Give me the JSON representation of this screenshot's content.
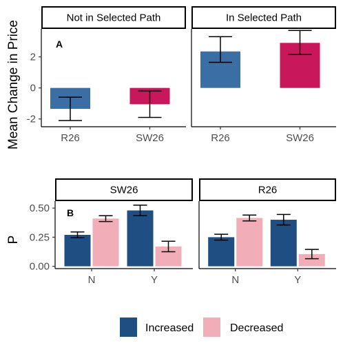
{
  "chart_data": [
    {
      "type": "bar",
      "tag": "A",
      "ylabel": "Mean Change in Price",
      "ylim": [
        -2.5,
        3.8
      ],
      "yticks": [
        -2,
        0,
        2
      ],
      "ytick_labels": [
        "-2",
        "0",
        "2"
      ],
      "categories": [
        "R26",
        "SW26"
      ],
      "facets": [
        {
          "label": "Not in Selected Path",
          "bars": [
            {
              "category": "R26",
              "value": -1.35,
              "err_low": -2.1,
              "err_high": -0.6,
              "color": "#3a6ea5"
            },
            {
              "category": "SW26",
              "value": -1.05,
              "err_low": -1.9,
              "err_high": -0.2,
              "color": "#c8175a"
            }
          ]
        },
        {
          "label": "In Selected Path",
          "bars": [
            {
              "category": "R26",
              "value": 2.35,
              "err_low": 1.65,
              "err_high": 3.3,
              "color": "#3a6ea5"
            },
            {
              "category": "SW26",
              "value": 2.9,
              "err_low": 2.15,
              "err_high": 3.7,
              "color": "#c8175a"
            }
          ]
        }
      ]
    },
    {
      "type": "bar",
      "tag": "B",
      "ylabel": "P",
      "ylim": [
        -0.02,
        0.56
      ],
      "yticks": [
        0,
        0.25,
        0.5
      ],
      "ytick_labels": [
        "0.00",
        "0.25",
        "0.50"
      ],
      "categories": [
        "N",
        "Y"
      ],
      "series": [
        {
          "name": "Increased",
          "color": "#1f4e82"
        },
        {
          "name": "Decreased",
          "color": "#f2aeb8"
        }
      ],
      "facets": [
        {
          "label": "SW26",
          "bars": [
            {
              "category": "N",
              "series": "Increased",
              "value": 0.27,
              "err_low": 0.245,
              "err_high": 0.295
            },
            {
              "category": "N",
              "series": "Decreased",
              "value": 0.41,
              "err_low": 0.385,
              "err_high": 0.435
            },
            {
              "category": "Y",
              "series": "Increased",
              "value": 0.48,
              "err_low": 0.435,
              "err_high": 0.525
            },
            {
              "category": "Y",
              "series": "Decreased",
              "value": 0.17,
              "err_low": 0.125,
              "err_high": 0.215
            }
          ]
        },
        {
          "label": "R26",
          "bars": [
            {
              "category": "N",
              "series": "Increased",
              "value": 0.25,
              "err_low": 0.225,
              "err_high": 0.275
            },
            {
              "category": "N",
              "series": "Decreased",
              "value": 0.415,
              "err_low": 0.39,
              "err_high": 0.44
            },
            {
              "category": "Y",
              "series": "Increased",
              "value": 0.4,
              "err_low": 0.355,
              "err_high": 0.445
            },
            {
              "category": "Y",
              "series": "Decreased",
              "value": 0.105,
              "err_low": 0.065,
              "err_high": 0.145
            }
          ]
        }
      ],
      "legend": {
        "position": "bottom"
      }
    }
  ]
}
